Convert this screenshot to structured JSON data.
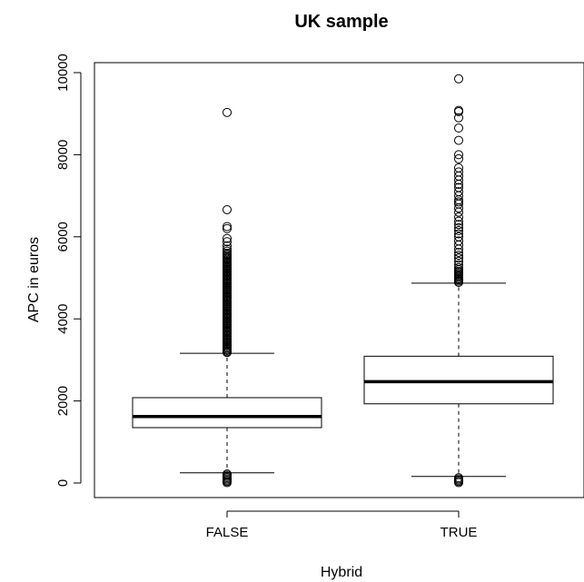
{
  "chart_data": {
    "type": "boxplot",
    "title": "UK sample",
    "xlabel": "Hybrid",
    "ylabel": "APC in euros",
    "ylim": [
      -300,
      10300
    ],
    "y_ticks": [
      0,
      2000,
      4000,
      6000,
      8000,
      10000
    ],
    "y_tick_labels": [
      "0",
      "2000",
      "4000",
      "6000",
      "8000",
      "10000"
    ],
    "categories": [
      "FALSE",
      "TRUE"
    ],
    "boxes": [
      {
        "category": "FALSE",
        "whisker_low": 250,
        "q1": 1350,
        "median": 1620,
        "q3": 2080,
        "whisker_high": 3160,
        "outliers": [
          10,
          40,
          70,
          100,
          130,
          160,
          190,
          220,
          3180,
          3200,
          3230,
          3260,
          3290,
          3320,
          3350,
          3380,
          3410,
          3440,
          3470,
          3500,
          3530,
          3560,
          3590,
          3620,
          3650,
          3680,
          3710,
          3740,
          3770,
          3800,
          3830,
          3860,
          3890,
          3920,
          3950,
          3980,
          4010,
          4040,
          4070,
          4100,
          4130,
          4160,
          4190,
          4220,
          4250,
          4280,
          4310,
          4340,
          4370,
          4400,
          4430,
          4460,
          4490,
          4520,
          4550,
          4580,
          4610,
          4640,
          4670,
          4700,
          4730,
          4760,
          4790,
          4820,
          4850,
          4880,
          4910,
          4940,
          4970,
          5000,
          5030,
          5060,
          5090,
          5120,
          5150,
          5180,
          5210,
          5240,
          5270,
          5300,
          5330,
          5360,
          5390,
          5420,
          5450,
          5480,
          5510,
          5540,
          5570,
          5600,
          5650,
          5700,
          5780,
          5880,
          5960,
          6200,
          6250,
          6660,
          9030
        ]
      },
      {
        "category": "TRUE",
        "whisker_low": 160,
        "q1": 1930,
        "median": 2470,
        "q3": 3090,
        "whisker_high": 4870,
        "outliers": [
          10,
          40,
          70,
          100,
          130,
          4890,
          4920,
          4950,
          4980,
          5010,
          5040,
          5070,
          5100,
          5130,
          5160,
          5200,
          5250,
          5320,
          5400,
          5480,
          5550,
          5620,
          5700,
          5800,
          5900,
          6000,
          6070,
          6150,
          6220,
          6300,
          6380,
          6480,
          6600,
          6700,
          6800,
          6850,
          6900,
          7000,
          7100,
          7200,
          7280,
          7380,
          7480,
          7580,
          7680,
          7900,
          8000,
          8350,
          8650,
          8900,
          9050,
          9080,
          9850
        ]
      }
    ]
  }
}
